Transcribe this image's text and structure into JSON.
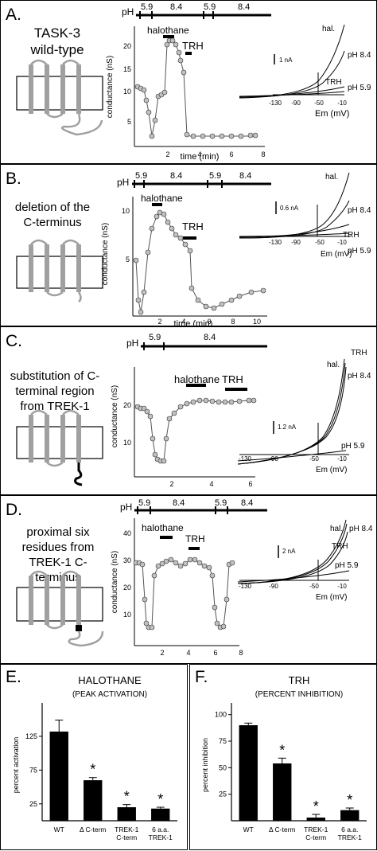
{
  "panels": [
    {
      "letter": "A.",
      "construct": "TASK-3 wild-type",
      "ph_label": "pH",
      "ph_values": [
        "5.9",
        "8.4",
        "5.9",
        "8.4"
      ],
      "bars": [
        {
          "label": "halothane"
        },
        {
          "label": "TRH"
        }
      ],
      "xlabel": "time (min)",
      "ylabel": "conductance (nS)",
      "x_ticks": [
        "2",
        "4",
        "6",
        "8"
      ],
      "y_ticks": [
        "5",
        "10",
        "15",
        "20"
      ],
      "iv": {
        "scale": "1 nA",
        "xlabel": "Em (mV)",
        "x_ticks": [
          "-130",
          "-90",
          "-50",
          "-10"
        ],
        "traces": [
          "hal.",
          "pH 8.4",
          "TRH",
          "pH 5.9"
        ]
      }
    },
    {
      "letter": "B.",
      "construct": "deletion of the C-terminus",
      "ph_label": "pH",
      "ph_values": [
        "5.9",
        "8.4",
        "5.9",
        "8.4"
      ],
      "bars": [
        {
          "label": "halothane"
        },
        {
          "label": "TRH"
        }
      ],
      "xlabel": "time (min)",
      "ylabel": "conductance (nS)",
      "x_ticks": [
        "2",
        "4",
        "6",
        "8",
        "10"
      ],
      "y_ticks": [
        "5",
        "10"
      ],
      "iv": {
        "scale": "0.6 nA",
        "xlabel": "Em (mV)",
        "x_ticks": [
          "-130",
          "-90",
          "-50",
          "-10"
        ],
        "traces": [
          "hal.",
          "pH 8.4",
          "TRH",
          "pH 5.9"
        ]
      }
    },
    {
      "letter": "C.",
      "construct": "substitution of C-terminal region from TREK-1",
      "ph_label": "pH",
      "ph_values": [
        "5.9",
        "8.4"
      ],
      "bars": [
        {
          "label": "halothane"
        },
        {
          "label": "TRH"
        }
      ],
      "xlabel": "",
      "ylabel": "conductance (nS)",
      "x_ticks": [
        "2",
        "4",
        "6"
      ],
      "y_ticks": [
        "10",
        "20"
      ],
      "iv": {
        "scale": "1.2 nA",
        "xlabel": "Em (mV)",
        "x_ticks": [
          "-130",
          "-90",
          "-50",
          "-10"
        ],
        "traces": [
          "TRH",
          "hal.",
          "pH 8.4",
          "pH 5.9"
        ]
      }
    },
    {
      "letter": "D.",
      "construct": "proximal six residues from TREK-1 C-terminus",
      "ph_label": "pH",
      "ph_values": [
        "5.9",
        "8.4",
        "5.9",
        "8.4"
      ],
      "bars": [
        {
          "label": "halothane"
        },
        {
          "label": "TRH"
        }
      ],
      "xlabel": "",
      "ylabel": "conductance (nS)",
      "x_ticks": [
        "2",
        "4",
        "6",
        "8"
      ],
      "y_ticks": [
        "10",
        "20",
        "30",
        "40"
      ],
      "iv": {
        "scale": "2 nA",
        "xlabel": "Em (mV)",
        "x_ticks": [
          "-130",
          "-90",
          "-50",
          "-10"
        ],
        "traces": [
          "hal.",
          "pH 8.4",
          "TRH",
          "pH 5.9"
        ]
      }
    }
  ],
  "chart_data": [
    {
      "type": "bar",
      "panel": "E.",
      "title": "HALOTHANE",
      "subtitle": "(PEAK ACTIVATION)",
      "ylabel": "percent activation",
      "categories": [
        "WT",
        "Δ C-term",
        "TREK-1 C-term",
        "6 a.a. TREK-1"
      ],
      "values": [
        132,
        60,
        20,
        18
      ],
      "errors": [
        17,
        4,
        4,
        2
      ],
      "significant": [
        false,
        true,
        true,
        true
      ],
      "yticks": [
        25,
        75,
        125
      ],
      "ylim": [
        0,
        165
      ]
    },
    {
      "type": "bar",
      "panel": "F.",
      "title": "TRH",
      "subtitle": "(PERCENT INHIBITION)",
      "ylabel": "percent inhibition",
      "categories": [
        "WT",
        "Δ C-term",
        "TREK-1 C-term",
        "6 a.a. TREK-1"
      ],
      "values": [
        90,
        54,
        3,
        10
      ],
      "errors": [
        2,
        5,
        3,
        2
      ],
      "significant": [
        false,
        true,
        true,
        true
      ],
      "yticks": [
        25,
        50,
        75,
        100
      ],
      "ylim": [
        0,
        105
      ]
    }
  ]
}
